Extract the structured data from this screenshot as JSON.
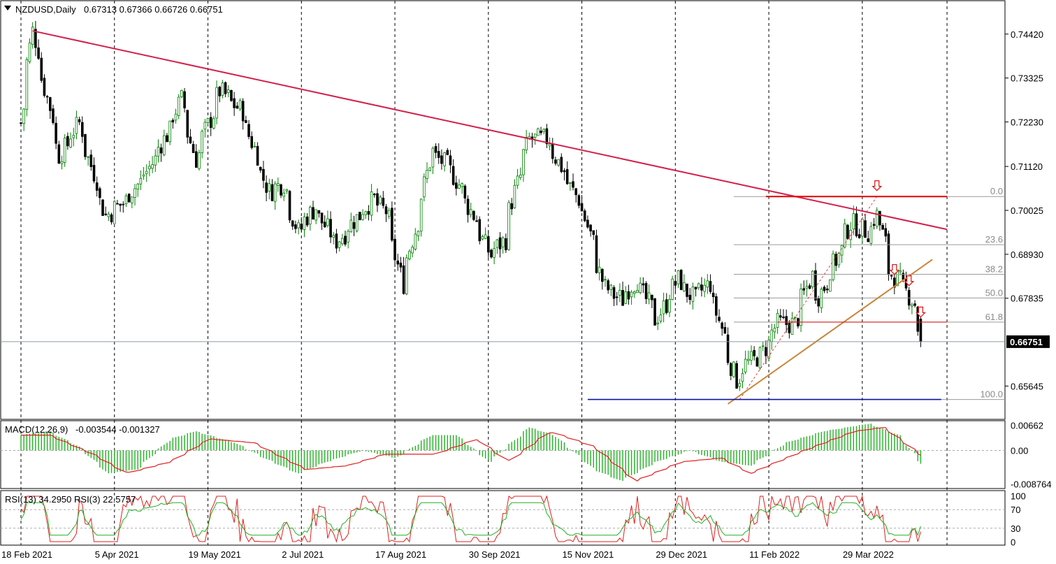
{
  "header": {
    "symbol": "NZDUSD,Daily",
    "ohlc": "0.67313 0.67366 0.66726 0.66751"
  },
  "colors": {
    "bull": "#008000",
    "bear": "#000000",
    "trend_down": "#d2204a",
    "trend_up": "#c8873a",
    "resistance": "#e01010",
    "support": "#0a14a0",
    "macd_hist": "#22b022",
    "macd_signal": "#e02020",
    "rsi13": "#22b022",
    "rsi3": "#e02020",
    "current_price_box": "#000000"
  },
  "chart_data": [
    {
      "type": "candlestick",
      "name": "NZDUSD,Daily",
      "x_ticks": [
        "18 Feb 2021",
        "5 Apr 2021",
        "19 May 2021",
        "2 Jul 2021",
        "17 Aug 2021",
        "30 Sep 2021",
        "15 Nov 2021",
        "29 Dec 2021",
        "11 Feb 2022",
        "29 Mar 2022"
      ],
      "y_ticks": [
        "0.74420",
        "0.73325",
        "0.72230",
        "0.71120",
        "0.70025",
        "0.68930",
        "0.67835",
        "0.65645"
      ],
      "ylim": [
        0.6485,
        0.752
      ],
      "current_price": "0.66751",
      "anchors": [
        [
          "2021-02-18",
          0.722
        ],
        [
          "2021-02-24",
          0.745
        ],
        [
          "2021-03-09",
          0.714
        ],
        [
          "2021-03-18",
          0.722
        ],
        [
          "2021-03-31",
          0.699
        ],
        [
          "2021-04-08",
          0.702
        ],
        [
          "2021-04-20",
          0.71
        ],
        [
          "2021-04-30",
          0.72
        ],
        [
          "2021-05-06",
          0.728
        ],
        [
          "2021-05-13",
          0.713
        ],
        [
          "2021-05-25",
          0.73
        ],
        [
          "2021-06-04",
          0.725
        ],
        [
          "2021-06-17",
          0.705
        ],
        [
          "2021-06-24",
          0.707
        ],
        [
          "2021-07-01",
          0.695
        ],
        [
          "2021-07-09",
          0.701
        ],
        [
          "2021-07-19",
          0.692
        ],
        [
          "2021-07-30",
          0.699
        ],
        [
          "2021-08-06",
          0.703
        ],
        [
          "2021-08-12",
          0.7
        ],
        [
          "2021-08-20",
          0.682
        ],
        [
          "2021-08-30",
          0.704
        ],
        [
          "2021-09-03",
          0.715
        ],
        [
          "2021-09-13",
          0.71
        ],
        [
          "2021-09-24",
          0.698
        ],
        [
          "2021-10-01",
          0.689
        ],
        [
          "2021-10-08",
          0.693
        ],
        [
          "2021-10-13",
          0.705
        ],
        [
          "2021-10-20",
          0.718
        ],
        [
          "2021-10-29",
          0.718
        ],
        [
          "2021-11-05",
          0.71
        ],
        [
          "2021-11-15",
          0.7
        ],
        [
          "2021-11-25",
          0.681
        ],
        [
          "2021-12-03",
          0.678
        ],
        [
          "2021-12-10",
          0.683
        ],
        [
          "2021-12-20",
          0.673
        ],
        [
          "2021-12-30",
          0.683
        ],
        [
          "2022-01-07",
          0.678
        ],
        [
          "2022-01-14",
          0.682
        ],
        [
          "2022-01-27",
          0.658
        ],
        [
          "2022-02-01",
          0.662
        ],
        [
          "2022-02-08",
          0.664
        ],
        [
          "2022-02-16",
          0.672
        ],
        [
          "2022-02-24",
          0.672
        ],
        [
          "2022-03-04",
          0.684
        ],
        [
          "2022-03-08",
          0.679
        ],
        [
          "2022-03-17",
          0.689
        ],
        [
          "2022-03-23",
          0.697
        ],
        [
          "2022-03-31",
          0.695
        ],
        [
          "2022-04-05",
          0.699
        ],
        [
          "2022-04-11",
          0.685
        ],
        [
          "2022-04-19",
          0.68
        ],
        [
          "2022-04-22",
          0.677
        ],
        [
          "2022-04-26",
          0.669
        ]
      ],
      "annotations": {
        "fib_levels": [
          {
            "label": "0.0",
            "price": 0.7037
          },
          {
            "label": "23.6",
            "price": 0.6917
          },
          {
            "label": "38.2",
            "price": 0.6843
          },
          {
            "label": "50.0",
            "price": 0.6784
          },
          {
            "label": "61.8",
            "price": 0.6724
          },
          {
            "label": "100.0",
            "price": 0.6531
          }
        ],
        "trendline_down": [
          [
            "2021-02-24",
            0.745
          ],
          [
            "2022-05-09",
            0.6955
          ]
        ],
        "trendline_up": [
          [
            "2022-01-24",
            0.652
          ],
          [
            "2022-05-02",
            0.688
          ]
        ],
        "resistance_line": [
          [
            "2022-02-10",
            0.7037
          ],
          [
            "2022-05-09",
            0.7037
          ]
        ],
        "support_line": [
          [
            "2021-11-17",
            0.6531
          ],
          [
            "2022-05-05",
            0.6531
          ]
        ],
        "sell_arrows": [
          [
            "2022-04-05",
            0.7052
          ],
          [
            "2022-04-13",
            0.6843
          ],
          [
            "2022-04-20",
            0.6815
          ],
          [
            "2022-04-26",
            0.6737
          ]
        ],
        "fib_swing": [
          [
            "2022-01-28",
            0.6531
          ],
          [
            "2022-04-05",
            0.7037
          ]
        ]
      }
    },
    {
      "type": "histogram",
      "name": "MACD(12,26,9)",
      "params": "-0.003544 -0.001327",
      "y_ticks": [
        "0.00662",
        "0.00",
        "-0.008764"
      ],
      "ylim": [
        -0.0098,
        0.0074
      ],
      "series": [
        {
          "name": "histogram",
          "anchors": [
            [
              "2021-02-18",
              0.004
            ],
            [
              "2021-03-04",
              0.005
            ],
            [
              "2021-03-18",
              0.001
            ],
            [
              "2021-04-01",
              -0.006
            ],
            [
              "2021-04-15",
              -0.005
            ],
            [
              "2021-05-01",
              0.003
            ],
            [
              "2021-05-13",
              0.005
            ],
            [
              "2021-06-01",
              0.002
            ],
            [
              "2021-06-15",
              -0.002
            ],
            [
              "2021-07-01",
              -0.006
            ],
            [
              "2021-07-15",
              -0.003
            ],
            [
              "2021-08-01",
              0.0
            ],
            [
              "2021-08-17",
              -0.002
            ],
            [
              "2021-09-03",
              0.004
            ],
            [
              "2021-09-15",
              0.004
            ],
            [
              "2021-10-01",
              -0.003
            ],
            [
              "2021-10-20",
              0.006
            ],
            [
              "2021-11-01",
              0.004
            ],
            [
              "2021-11-20",
              -0.005
            ],
            [
              "2021-12-03",
              -0.008
            ],
            [
              "2021-12-20",
              -0.003
            ],
            [
              "2022-01-05",
              0.0
            ],
            [
              "2022-01-20",
              -0.003
            ],
            [
              "2022-02-03",
              -0.004
            ],
            [
              "2022-02-20",
              0.002
            ],
            [
              "2022-03-10",
              0.005
            ],
            [
              "2022-04-01",
              0.007
            ],
            [
              "2022-04-15",
              0.004
            ],
            [
              "2022-04-26",
              -0.0035
            ]
          ]
        },
        {
          "name": "signal",
          "anchors": [
            [
              "2021-02-18",
              0.004
            ],
            [
              "2021-03-04",
              0.004
            ],
            [
              "2021-03-25",
              -0.001
            ],
            [
              "2021-04-10",
              -0.006
            ],
            [
              "2021-05-01",
              -0.003
            ],
            [
              "2021-05-20",
              0.003
            ],
            [
              "2021-06-10",
              0.002
            ],
            [
              "2021-07-05",
              -0.005
            ],
            [
              "2021-07-25",
              -0.004
            ],
            [
              "2021-08-12",
              -0.001
            ],
            [
              "2021-09-05",
              -0.001
            ],
            [
              "2021-09-25",
              0.003
            ],
            [
              "2021-10-10",
              -0.003
            ],
            [
              "2021-10-30",
              0.005
            ],
            [
              "2021-11-20",
              0.001
            ],
            [
              "2021-12-10",
              -0.008
            ],
            [
              "2022-01-01",
              -0.003
            ],
            [
              "2022-01-20",
              -0.002
            ],
            [
              "2022-02-03",
              -0.006
            ],
            [
              "2022-03-01",
              0.0
            ],
            [
              "2022-03-25",
              0.005
            ],
            [
              "2022-04-08",
              0.006
            ],
            [
              "2022-04-26",
              -0.0013
            ]
          ]
        }
      ]
    },
    {
      "type": "line",
      "name": "RSI",
      "title": "RSI(13) 34.2950  RSI(3) 22.5757",
      "y_ticks": [
        "100",
        "70",
        "30",
        "0"
      ],
      "ylim": [
        -5,
        108
      ],
      "series": [
        {
          "name": "RSI(13)",
          "value": "34.2950"
        },
        {
          "name": "RSI(3)",
          "value": "22.5757"
        }
      ]
    }
  ]
}
